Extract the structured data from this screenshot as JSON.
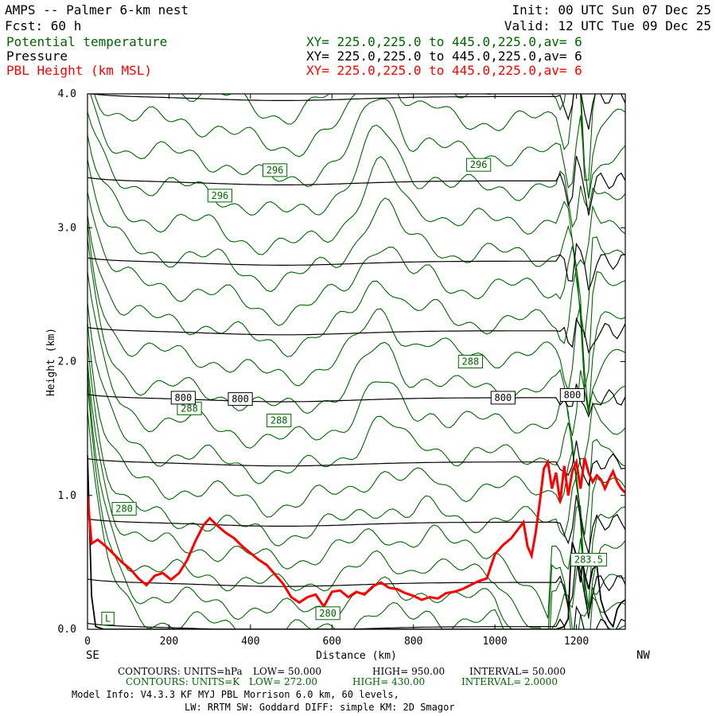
{
  "header": {
    "title": "AMPS -- Palmer 6-km nest",
    "init": "Init: 00 UTC Sun 07 Dec 25",
    "forecast": "Fcst:   60 h",
    "valid": "Valid: 12 UTC Tue 09 Dec 25",
    "fields": [
      {
        "name": "Potential temperature",
        "xy": "XY= 225.0,225.0 to 445.0,225.0,av=  6",
        "color": "#006400"
      },
      {
        "name": "Pressure",
        "xy": "XY= 225.0,225.0 to 445.0,225.0,av=  6",
        "color": "#000000"
      },
      {
        "name": "PBL Height (km MSL)",
        "xy": "XY= 225.0,225.0 to 445.0,225.0,av=  6",
        "color": "#ff0000"
      }
    ]
  },
  "chart_data": {
    "type": "line",
    "title": "AMPS -- Palmer 6-km nest",
    "xlabel": "Distance (km)",
    "ylabel": "Height (km)",
    "xlim": [
      0,
      1320
    ],
    "ylim": [
      0,
      4.0
    ],
    "x_ticks": [
      0,
      200,
      400,
      600,
      800,
      1000,
      1200
    ],
    "x_tick_labels": [
      "0",
      "200",
      "400",
      "600",
      "800",
      "1000",
      "1200"
    ],
    "y_ticks": [
      0,
      1,
      2,
      3,
      4
    ],
    "y_tick_labels": [
      "0.0",
      "1.0",
      "2.0",
      "3.0",
      "4.0"
    ],
    "x_end_labels": {
      "left": "SE",
      "right": "NW"
    },
    "colors": {
      "theta": "#006400",
      "pressure": "#000000",
      "pbl": "#ff0000"
    },
    "theta_base_heights": [
      0.05,
      0.22,
      0.42,
      0.62,
      0.82,
      1.05,
      1.3,
      1.55,
      1.8,
      2.05,
      2.3,
      2.55,
      2.8,
      3.05,
      3.3,
      3.55,
      3.8,
      4.05
    ],
    "pressure_levels": [
      {
        "height": 0.02
      },
      {
        "height": 0.35
      },
      {
        "height": 0.8
      },
      {
        "height": 1.25
      },
      {
        "height": 1.73,
        "label": "800"
      },
      {
        "height": 2.23
      },
      {
        "height": 2.75
      },
      {
        "height": 3.35
      },
      {
        "height": 3.98
      }
    ],
    "pbl_height": {
      "x": [
        0,
        10,
        25,
        45,
        65,
        85,
        105,
        125,
        145,
        165,
        185,
        205,
        225,
        245,
        265,
        285,
        300,
        320,
        340,
        360,
        380,
        400,
        420,
        440,
        460,
        480,
        500,
        520,
        540,
        560,
        580,
        600,
        620,
        640,
        660,
        680,
        700,
        720,
        740,
        760,
        780,
        800,
        820,
        840,
        860,
        880,
        900,
        920,
        940,
        960,
        980,
        1000,
        1020,
        1040,
        1060,
        1070,
        1080,
        1090,
        1100,
        1110,
        1120,
        1130,
        1140,
        1150,
        1160,
        1170,
        1180,
        1190,
        1200,
        1210,
        1220,
        1230,
        1240,
        1250,
        1260,
        1270,
        1280,
        1290,
        1300,
        1310,
        1320
      ],
      "y": [
        1.0,
        0.64,
        0.67,
        0.62,
        0.56,
        0.5,
        0.45,
        0.38,
        0.33,
        0.4,
        0.42,
        0.37,
        0.42,
        0.52,
        0.66,
        0.78,
        0.83,
        0.77,
        0.72,
        0.68,
        0.62,
        0.57,
        0.52,
        0.48,
        0.41,
        0.34,
        0.24,
        0.2,
        0.24,
        0.26,
        0.17,
        0.28,
        0.29,
        0.24,
        0.28,
        0.26,
        0.32,
        0.35,
        0.31,
        0.3,
        0.27,
        0.25,
        0.22,
        0.24,
        0.23,
        0.27,
        0.28,
        0.3,
        0.33,
        0.36,
        0.38,
        0.56,
        0.63,
        0.68,
        0.76,
        0.8,
        0.62,
        0.55,
        0.72,
        0.95,
        1.2,
        1.25,
        1.05,
        1.17,
        0.95,
        1.22,
        1.0,
        1.18,
        1.25,
        1.05,
        1.28,
        1.17,
        1.1,
        1.15,
        1.12,
        1.05,
        1.12,
        1.18,
        1.1,
        1.05,
        1.02
      ]
    },
    "terrain_height": {
      "x": [
        0,
        10,
        20,
        40,
        80,
        120,
        200,
        400,
        600,
        800,
        1000,
        1100,
        1150,
        1170,
        1180,
        1185,
        1190,
        1200,
        1210,
        1215,
        1220,
        1230,
        1240,
        1250,
        1260,
        1270,
        1280,
        1290,
        1300,
        1310,
        1320
      ],
      "y": [
        1.3,
        0.25,
        0.02,
        0.0,
        0.0,
        0.0,
        0.0,
        0.0,
        0.0,
        0.0,
        0.0,
        0.0,
        0.0,
        0.02,
        0.08,
        0.45,
        0.65,
        0.55,
        0.35,
        0.5,
        0.42,
        0.3,
        0.45,
        0.48,
        0.22,
        0.12,
        0.06,
        0.02,
        0.15,
        0.2,
        0.22
      ]
    },
    "contour_labels": [
      {
        "text": "296",
        "x": 460,
        "y": 3.43,
        "series": "theta"
      },
      {
        "text": "296",
        "x": 960,
        "y": 3.47,
        "series": "theta"
      },
      {
        "text": "296",
        "x": 325,
        "y": 3.24,
        "series": "theta"
      },
      {
        "text": "288",
        "x": 940,
        "y": 2.0,
        "series": "theta"
      },
      {
        "text": "288",
        "x": 250,
        "y": 1.65,
        "series": "theta"
      },
      {
        "text": "288",
        "x": 470,
        "y": 1.56,
        "series": "theta"
      },
      {
        "text": "280",
        "x": 90,
        "y": 0.9,
        "series": "theta"
      },
      {
        "text": "280",
        "x": 590,
        "y": 0.12,
        "series": "theta"
      },
      {
        "text": "283.5",
        "x": 1230,
        "y": 0.52,
        "series": "theta"
      },
      {
        "text": "L",
        "x": 50,
        "y": 0.08,
        "series": "theta"
      },
      {
        "text": "800",
        "x": 235,
        "y": 1.73,
        "series": "pressure"
      },
      {
        "text": "800",
        "x": 375,
        "y": 1.72,
        "series": "pressure"
      },
      {
        "text": "800",
        "x": 1020,
        "y": 1.73,
        "series": "pressure"
      },
      {
        "text": "800",
        "x": 1190,
        "y": 1.75,
        "series": "pressure"
      }
    ]
  },
  "footer": {
    "pressure_contours": {
      "units": "CONTOURS:  UNITS=hPa",
      "low": "LOW=  50.000",
      "high": "HIGH=  950.00",
      "interval": "INTERVAL=  50.000"
    },
    "theta_contours": {
      "units": "CONTOURS:  UNITS=K",
      "low": "LOW=  272.00",
      "high": "HIGH=  430.00",
      "interval": "INTERVAL=  2.0000"
    },
    "model_info_1": "Model Info: V4.3.3   KF      MYJ PBL  Morrison             6.0 km,  60 levels,",
    "model_info_2": "LW: RRTM SW: Goddard DIFF: simple KM: 2D Smagor"
  }
}
